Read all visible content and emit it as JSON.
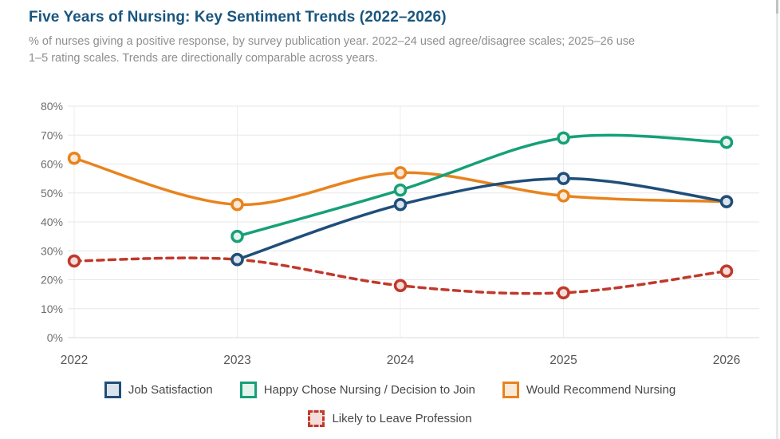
{
  "page": {
    "title": "Five Years of Nursing: Key Sentiment Trends (2022–2026)",
    "subtitle_line1": "% of nurses giving a positive response, by survey publication year. 2022–24 used agree/disagree scales; 2025–26 use",
    "subtitle_line2": "1–5 rating scales. Trends are directionally comparable across years."
  },
  "chart_data": {
    "type": "line",
    "title": "Five Years of Nursing: Key Sentiment Trends (2022–2026)",
    "x": [
      "2022",
      "2023",
      "2024",
      "2025",
      "2026"
    ],
    "ylim": [
      0,
      80
    ],
    "ytick_step": 10,
    "ytick_suffix": "%",
    "grid": true,
    "legend_position": "bottom",
    "line_smoothing": true,
    "series": [
      {
        "name": "Job Satisfaction",
        "color": "#1F4E79",
        "fill": "#D9E3EC",
        "dashed": false,
        "values": [
          null,
          27,
          46,
          55,
          47
        ]
      },
      {
        "name": "Happy Chose Nursing / Decision to Join",
        "color": "#17A077",
        "fill": "#E4F4ED",
        "dashed": false,
        "values": [
          null,
          35,
          51,
          69,
          67.5
        ]
      },
      {
        "name": "Would Recommend Nursing",
        "color": "#E8831D",
        "fill": "#FAE9D6",
        "dashed": false,
        "values": [
          62,
          46,
          57,
          49,
          47
        ]
      },
      {
        "name": "Likely to Leave Profession",
        "color": "#C0392B",
        "fill": "#F5DDDA",
        "dashed": true,
        "values": [
          26.5,
          27,
          18,
          15.5,
          23
        ]
      }
    ]
  }
}
